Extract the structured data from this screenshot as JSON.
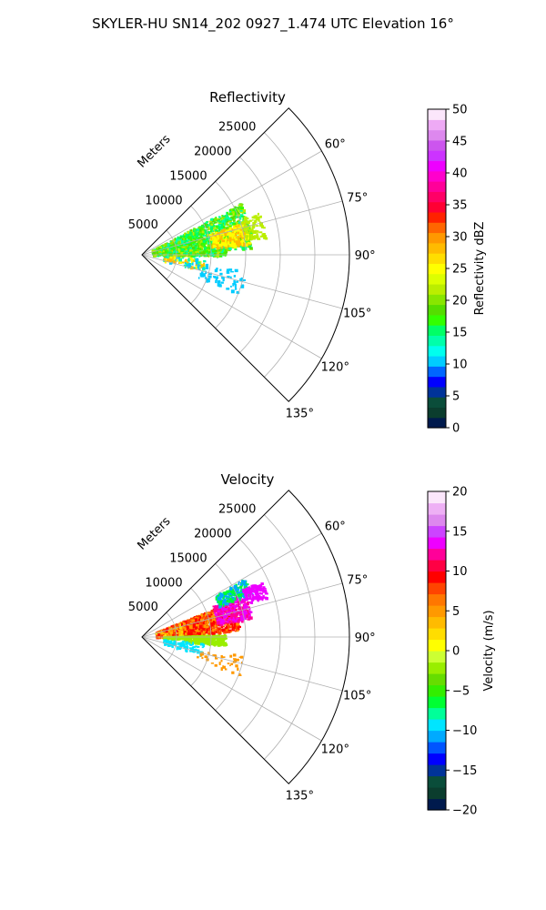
{
  "suptitle": "SKYLER-HU  SN14_202  0927_1.474 UTC Elevation 16°",
  "chart_data": [
    {
      "type": "polar-sector",
      "title": "Reflectivity",
      "radial_label": "Meters",
      "radial_ticks": [
        5000,
        10000,
        15000,
        20000,
        25000
      ],
      "radial_tick_labels": [
        "5000",
        "10000",
        "15000",
        "20000",
        "25000"
      ],
      "rmax": 30000,
      "angle_ticks": [
        60,
        75,
        90,
        105,
        120,
        135
      ],
      "angle_tick_labels": [
        "60°",
        "75°",
        "90°",
        "105°",
        "120°",
        "135°"
      ],
      "theta_range": [
        45,
        135
      ],
      "grid": true,
      "colorbar": {
        "label": "Reflectivity dBZ",
        "min": 0,
        "max": 50,
        "ticks": [
          0,
          5,
          10,
          15,
          20,
          25,
          30,
          35,
          40,
          45,
          50
        ],
        "tick_labels": [
          "0",
          "5",
          "10",
          "15",
          "20",
          "25",
          "30",
          "35",
          "40",
          "45",
          "50"
        ],
        "colors": [
          "#001a4d",
          "#0b3d2e",
          "#0a4d3a",
          "#003399",
          "#0000ff",
          "#0066ff",
          "#00ccff",
          "#00ffee",
          "#00ffaa",
          "#00ff66",
          "#33ff00",
          "#55dd00",
          "#88e600",
          "#bbee00",
          "#ddff00",
          "#ffff00",
          "#ffdd00",
          "#ffbb00",
          "#ff9900",
          "#ff6600",
          "#ff2200",
          "#ff0033",
          "#ff0066",
          "#ff0099",
          "#ff00cc",
          "#ee00ff",
          "#cc33ff",
          "#cc55ee",
          "#dd88ee",
          "#eeaaf5",
          "#fbe6fb"
        ]
      }
    },
    {
      "type": "polar-sector",
      "title": "Velocity",
      "radial_label": "Meters",
      "radial_ticks": [
        5000,
        10000,
        15000,
        20000,
        25000
      ],
      "radial_tick_labels": [
        "5000",
        "10000",
        "15000",
        "20000",
        "25000"
      ],
      "rmax": 30000,
      "angle_ticks": [
        60,
        75,
        90,
        105,
        120,
        135
      ],
      "angle_tick_labels": [
        "60°",
        "75°",
        "90°",
        "105°",
        "120°",
        "135°"
      ],
      "theta_range": [
        45,
        135
      ],
      "grid": true,
      "colorbar": {
        "label": "Velocity (m/s)",
        "min": -20,
        "max": 20,
        "ticks": [
          -20,
          -15,
          -10,
          -5,
          0,
          5,
          10,
          15,
          20
        ],
        "tick_labels": [
          "−20",
          "−15",
          "−10",
          "−5",
          "0",
          "5",
          "10",
          "15",
          "20"
        ],
        "colors": [
          "#001a4d",
          "#0b3d2e",
          "#0a4d3a",
          "#003399",
          "#0000ff",
          "#0055ff",
          "#00aaff",
          "#00e5ff",
          "#00ff99",
          "#00ff33",
          "#33ee00",
          "#66dd00",
          "#99ee00",
          "#ccff33",
          "#ffff00",
          "#ffdd00",
          "#ffbb00",
          "#ff9900",
          "#ff7700",
          "#ff4400",
          "#ff0000",
          "#ff0044",
          "#ff0099",
          "#ee00ff",
          "#cc44ff",
          "#dd88ee",
          "#eeb0f5",
          "#fbe6fb"
        ]
      }
    }
  ],
  "echo_colors": {
    "reflectivity": [
      "#00ff66",
      "#55dd00",
      "#88e600",
      "#33ff00",
      "#bbee00",
      "#00ffaa",
      "#ffff00",
      "#ffbb00",
      "#00ccff"
    ],
    "velocity": [
      "#ff0000",
      "#ff4400",
      "#ff9900",
      "#ffbb00",
      "#ffdd00",
      "#ff0099",
      "#ee00ff",
      "#99ee00",
      "#00e5ff",
      "#00ff33",
      "#00aaff"
    ]
  }
}
